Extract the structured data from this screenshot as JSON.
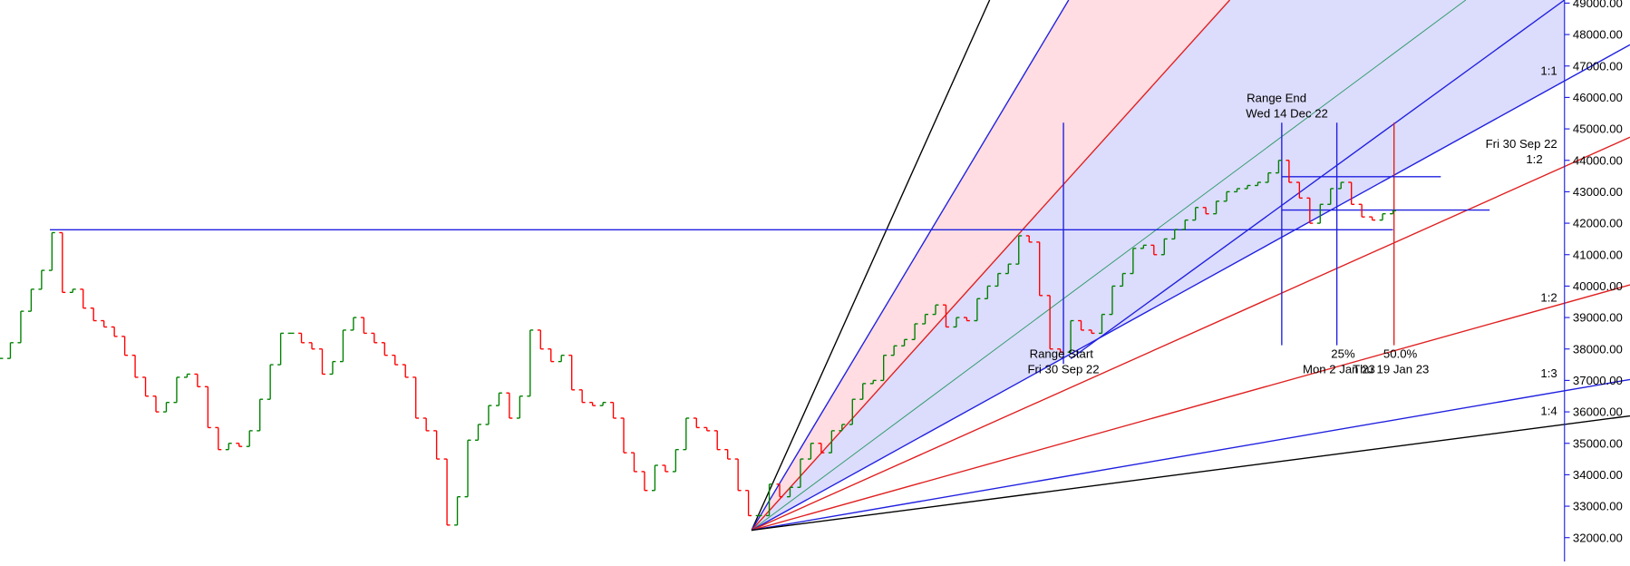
{
  "chart_data": {
    "type": "price-bars",
    "values": [
      37700,
      38200,
      39200,
      39900,
      40500,
      41700,
      39800,
      39900,
      39300,
      38900,
      38700,
      38400,
      37800,
      37100,
      36500,
      36000,
      36300,
      37100,
      37200,
      36800,
      35500,
      34800,
      35000,
      34900,
      35400,
      36400,
      37500,
      38500,
      38500,
      38200,
      38000,
      37200,
      37600,
      38600,
      39000,
      38500,
      38200,
      37800,
      37500,
      37100,
      35800,
      35400,
      34500,
      32400,
      33300,
      35100,
      35600,
      36200,
      36600,
      35800,
      36500,
      38600,
      38000,
      37600,
      37800,
      36700,
      36300,
      36200,
      36300,
      35800,
      34700,
      34100,
      33500,
      34300,
      34100,
      34800,
      35800,
      35500,
      35400,
      34800,
      34500,
      33500,
      32700,
      32700,
      33700,
      33300,
      33600,
      34500,
      35000,
      34700,
      35400,
      35600,
      36400,
      36900,
      37000,
      37800,
      38100,
      38300,
      38800,
      39100,
      39400,
      38700,
      39000,
      38900,
      39600,
      40000,
      40400,
      40700,
      41600,
      41400,
      39700,
      38000,
      37900,
      38900,
      38600,
      38500,
      39100,
      40000,
      40400,
      41200,
      41300,
      41000,
      41500,
      41800,
      42100,
      42500,
      42300,
      42700,
      43000,
      43100,
      43200,
      43300,
      43600,
      44000,
      43300,
      42800,
      42000,
      42600,
      43100,
      43300,
      42600,
      42200,
      42100,
      42300,
      42400
    ],
    "up_color": "#008000",
    "down_color": "#ff0000",
    "ylim": [
      31242,
      49099
    ],
    "yticks": [
      {
        "value": 32000,
        "label": "32000.00"
      },
      {
        "value": 33000,
        "label": "33000.00"
      },
      {
        "value": 34000,
        "label": "34000.00"
      },
      {
        "value": 35000,
        "label": "35000.00"
      },
      {
        "value": 36000,
        "label": "36000.00"
      },
      {
        "value": 37000,
        "label": "37000.00"
      },
      {
        "value": 38000,
        "label": "38000.00"
      },
      {
        "value": 39000,
        "label": "39000.00"
      },
      {
        "value": 40000,
        "label": "40000.00"
      },
      {
        "value": 41000,
        "label": "41000.00"
      },
      {
        "value": 42000,
        "label": "42000.00"
      },
      {
        "value": 43000,
        "label": "43000.00"
      },
      {
        "value": 44000,
        "label": "44000.00"
      },
      {
        "value": 45000,
        "label": "45000.00"
      },
      {
        "value": 46000,
        "label": "46000.00"
      },
      {
        "value": 47000,
        "label": "47000.00"
      },
      {
        "value": 48000,
        "label": "48000.00"
      },
      {
        "value": 49000,
        "label": "49000.00"
      }
    ],
    "annotations": {
      "range_end": "Range End",
      "range_end_date": "Wed 14 Dec 22",
      "range_start": "Range Start",
      "range_start_date": "Fri 30 Sep 22",
      "pct_25": "25%",
      "pct_50": "50.0%",
      "date_25": "Mon 2 Jan 23",
      "date_50": "Thu 19 Jan 23",
      "fan_1_1": "1:1",
      "fan_date": "Fri 30 Sep 22",
      "fan_1_2_upper": "1:2",
      "fan_1_2": "1:2",
      "fan_1_3": "1:3",
      "fan_1_4": "1:4"
    }
  }
}
